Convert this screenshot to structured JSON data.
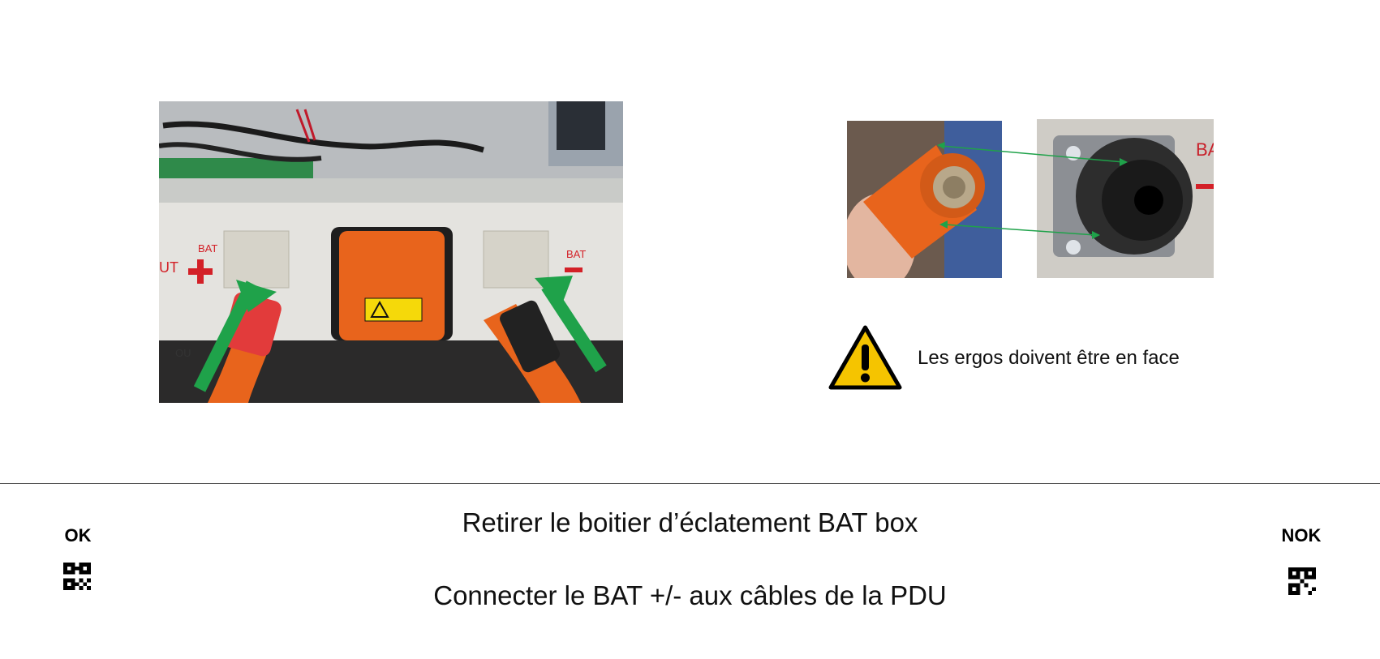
{
  "photo_main": {
    "label_bat_plus": "BAT",
    "label_bat_minus": "BAT",
    "label_out": "UT",
    "label_out2": "OU"
  },
  "photo_right": {
    "label_ba": "BA"
  },
  "warning": {
    "icon": "warning-triangle-icon",
    "text": "Les ergos doivent être en face"
  },
  "footer": {
    "ok_label": "OK",
    "nok_label": "NOK",
    "instruction_1": "Retirer le boitier d’éclatement BAT box",
    "instruction_2": "Connecter le BAT +/- aux câbles de la PDU"
  },
  "colors": {
    "arrow_green": "#1fa24a",
    "connector_orange": "#e8641c",
    "warning_yellow": "#f5c400"
  }
}
